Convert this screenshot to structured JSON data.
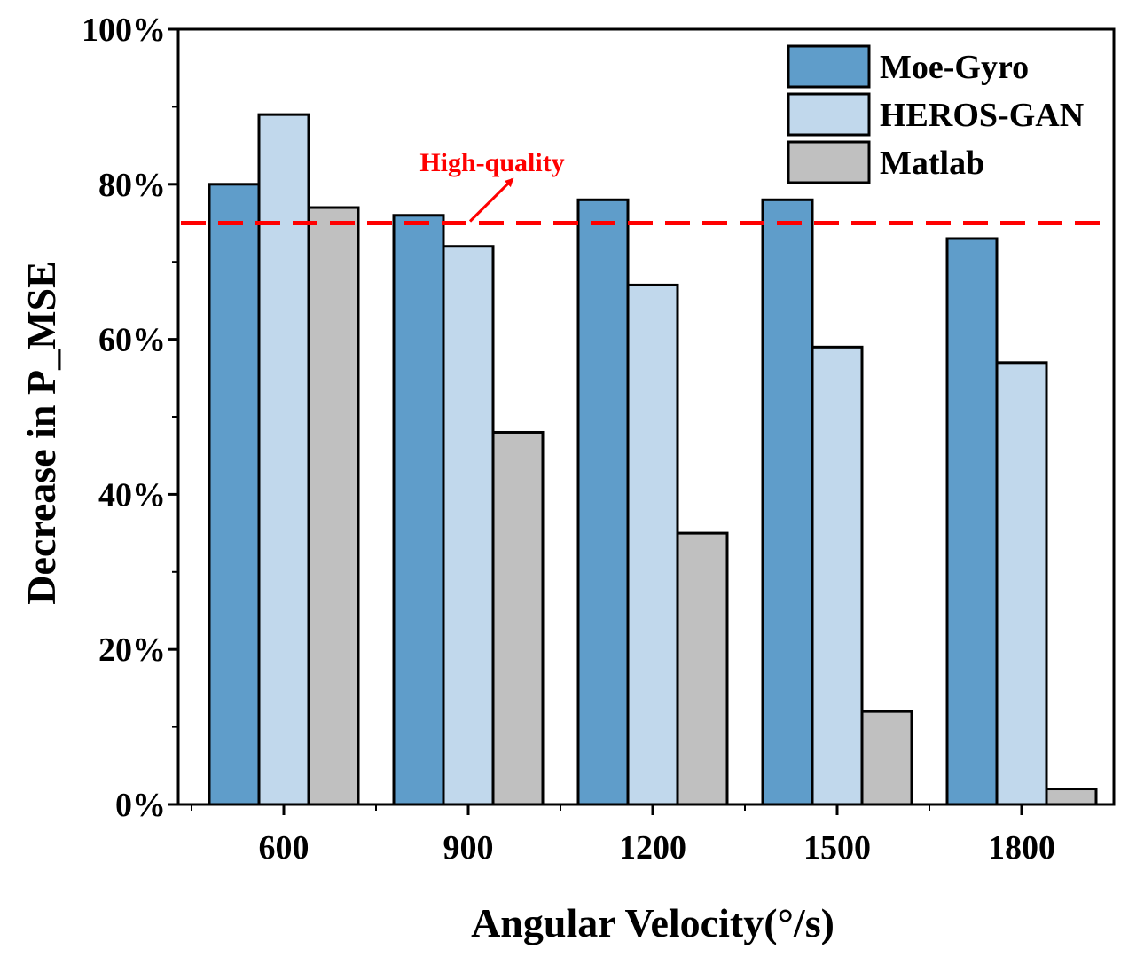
{
  "chart_data": {
    "type": "bar",
    "title": "",
    "xlabel": "Angular Velocity(°/s)",
    "ylabel": "Decrease in P_MSE",
    "categories": [
      "600",
      "900",
      "1200",
      "1500",
      "1800"
    ],
    "series": [
      {
        "name": "Moe-Gyro",
        "color": "#5f9dca",
        "values": [
          80,
          76,
          78,
          78,
          73
        ]
      },
      {
        "name": "HEROS-GAN",
        "color": "#c1d8ec",
        "values": [
          89,
          72,
          67,
          59,
          57
        ]
      },
      {
        "name": "Matlab",
        "color": "#c0c0c0",
        "values": [
          77,
          48,
          35,
          12,
          2
        ]
      }
    ],
    "ylim": [
      0,
      100
    ],
    "yticks": [
      0,
      20,
      40,
      60,
      80,
      100
    ],
    "ytick_labels": [
      "0%",
      "20%",
      "40%",
      "60%",
      "80%",
      "100%"
    ],
    "legend_position": "top-right",
    "reference_line": {
      "value": 75,
      "color": "#ff0000",
      "style": "dashed"
    },
    "annotation": {
      "text": "High-quality",
      "color": "#ff0000",
      "points_to": 75
    }
  }
}
